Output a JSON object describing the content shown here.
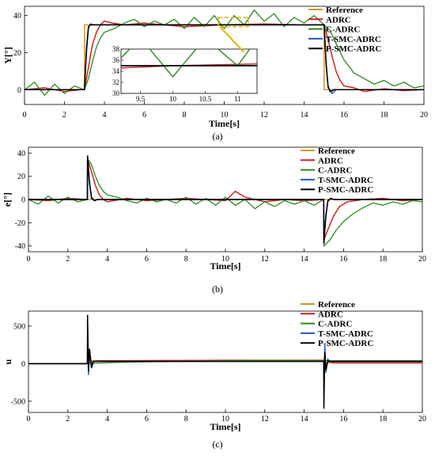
{
  "figure": {
    "series_colors": {
      "Reference": "#d4952a",
      "ADRC": "#cc2222",
      "C-ADRC": "#2a8a1e",
      "T-SMC-ADRC": "#2255cc",
      "P-SMC-ADRC": "#000000"
    }
  },
  "chart_data": [
    {
      "panel": "a",
      "caption": "(a)",
      "type": "line",
      "xlabel": "Time[s]",
      "ylabel": "Y[°]",
      "xlim": [
        0,
        20
      ],
      "ylim": [
        -8,
        45
      ],
      "xticks": [
        0,
        2,
        4,
        6,
        8,
        10,
        12,
        14,
        16,
        18,
        20
      ],
      "yticks": [
        0,
        20,
        40
      ],
      "grid": false,
      "legend": "top-right",
      "series": [
        {
          "name": "Reference",
          "x": [
            0,
            3,
            3,
            15,
            15,
            20
          ],
          "y": [
            0,
            0,
            35,
            35,
            0,
            0
          ]
        },
        {
          "name": "ADRC",
          "x": [
            0,
            1,
            2,
            2.8,
            3.0,
            3.2,
            3.4,
            3.6,
            3.8,
            4.0,
            4.4,
            5.0,
            6.0,
            8.0,
            10.0,
            12.0,
            14.0,
            14.8,
            15.0,
            15.2,
            15.4,
            15.6,
            15.8,
            16.0,
            16.5,
            17.0,
            18.0,
            19.0,
            20.0
          ],
          "y": [
            0,
            1,
            -1,
            0,
            0,
            12,
            24,
            31,
            35,
            37,
            36,
            35,
            36,
            34,
            35,
            35.5,
            35,
            35,
            35,
            27,
            18,
            10,
            5,
            2,
            1,
            -1,
            0.5,
            -0.5,
            0
          ]
        },
        {
          "name": "C-ADRC",
          "x": [
            0,
            0.5,
            1.0,
            1.5,
            2.0,
            2.5,
            3.0,
            3.2,
            3.4,
            3.6,
            3.8,
            4.0,
            4.5,
            5.0,
            5.5,
            6.0,
            6.5,
            7.0,
            7.5,
            8.0,
            8.5,
            9.0,
            9.5,
            10.0,
            10.5,
            11.0,
            11.5,
            12.0,
            12.5,
            13.0,
            13.5,
            14.0,
            14.5,
            15.0,
            15.3,
            15.6,
            16.0,
            16.5,
            17.0,
            17.5,
            18.0,
            18.5,
            19.0,
            19.5,
            20.0
          ],
          "y": [
            0,
            4,
            -3,
            3,
            -2,
            2,
            0,
            6,
            15,
            23,
            28,
            31,
            33,
            36,
            38,
            34,
            37,
            35,
            38,
            33,
            39,
            34,
            40,
            33,
            40,
            35,
            43,
            37,
            41,
            34,
            39,
            36,
            40,
            35,
            32,
            25,
            16,
            9,
            6,
            3,
            5,
            2,
            4,
            1,
            2
          ]
        },
        {
          "name": "T-SMC-ADRC",
          "x": [
            0,
            3.0,
            3.1,
            3.2,
            3.3,
            3.5,
            15.0,
            15.1,
            15.2,
            15.4,
            15.6,
            20
          ],
          "y": [
            0,
            0,
            20,
            33,
            35.5,
            35,
            35,
            15,
            1,
            -2,
            0,
            0
          ]
        },
        {
          "name": "P-SMC-ADRC",
          "x": [
            0,
            3.0,
            3.1,
            3.2,
            3.3,
            3.5,
            15.0,
            15.1,
            15.2,
            15.3,
            15.5,
            20
          ],
          "y": [
            0,
            0,
            22,
            34,
            35,
            35,
            35,
            14,
            2,
            -1,
            0,
            0
          ]
        }
      ],
      "inset": {
        "xlim": [
          9.2,
          11.3
        ],
        "ylim": [
          30,
          38
        ],
        "xticks": [
          9.5,
          10,
          10.5,
          11
        ],
        "yticks": [
          30,
          32,
          34,
          36,
          38
        ],
        "zoom_box": {
          "x": [
            9.7,
            11.2
          ],
          "y": [
            34,
            39
          ]
        }
      }
    },
    {
      "panel": "b",
      "caption": "(b)",
      "type": "line",
      "xlabel": "Time[s]",
      "ylabel": "e[°]",
      "xlim": [
        0,
        20
      ],
      "ylim": [
        -45,
        45
      ],
      "xticks": [
        0,
        2,
        4,
        6,
        8,
        10,
        12,
        14,
        16,
        18,
        20
      ],
      "yticks": [
        -40,
        -20,
        0,
        20,
        40
      ],
      "grid": false,
      "legend": "top-right",
      "series": [
        {
          "name": "Reference",
          "x": [
            0,
            20
          ],
          "y": [
            0,
            0
          ]
        },
        {
          "name": "ADRC",
          "x": [
            0,
            1,
            2,
            2.99,
            3.0,
            3.2,
            3.4,
            3.6,
            3.8,
            4.0,
            5,
            6,
            8,
            10,
            10.5,
            11,
            12,
            13,
            14,
            14.99,
            15.0,
            15.2,
            15.5,
            15.8,
            16.2,
            17,
            18,
            19,
            20
          ],
          "y": [
            0,
            -1,
            1,
            0,
            35,
            24,
            12,
            4,
            0,
            -2,
            1,
            -1,
            1,
            -1,
            7,
            2,
            -2,
            0,
            -1,
            0,
            -35,
            -26,
            -14,
            -6,
            -2,
            0,
            1,
            -1,
            0
          ]
        },
        {
          "name": "C-ADRC",
          "x": [
            0,
            0.5,
            1.0,
            1.5,
            2.0,
            2.5,
            2.99,
            3.0,
            3.2,
            3.4,
            3.6,
            3.8,
            4.0,
            4.5,
            5.0,
            5.5,
            6.0,
            6.5,
            7.0,
            7.5,
            8.0,
            8.5,
            9.0,
            9.5,
            10.0,
            10.5,
            11.0,
            11.5,
            12.0,
            12.5,
            13.0,
            13.5,
            14.0,
            14.5,
            14.99,
            15.0,
            15.3,
            15.6,
            16.0,
            16.5,
            17.0,
            17.5,
            18.0,
            18.5,
            19.0,
            19.5,
            20.0
          ],
          "y": [
            0,
            -4,
            3,
            -3,
            2,
            -2,
            0,
            35,
            30,
            20,
            12,
            7,
            4,
            2,
            -1,
            -3,
            1,
            -2,
            0,
            -3,
            2,
            -4,
            1,
            -5,
            2,
            -5,
            0,
            -8,
            -2,
            -6,
            -1,
            -4,
            -1,
            -5,
            0,
            -40,
            -35,
            -27,
            -19,
            -12,
            -7,
            -3,
            -5,
            -2,
            -4,
            -1,
            -2
          ]
        },
        {
          "name": "T-SMC-ADRC",
          "x": [
            0,
            2.99,
            3.0,
            3.1,
            3.2,
            3.35,
            3.5,
            14.99,
            15.0,
            15.1,
            15.2,
            15.35,
            15.5,
            20
          ],
          "y": [
            0,
            0,
            35,
            15,
            2,
            -1,
            0,
            0,
            -35,
            -15,
            -2,
            1,
            0,
            0
          ]
        },
        {
          "name": "P-SMC-ADRC",
          "x": [
            0,
            2.99,
            3.0,
            3.1,
            3.2,
            3.35,
            3.5,
            14.99,
            15.0,
            15.1,
            15.2,
            15.35,
            15.5,
            20
          ],
          "y": [
            0,
            0,
            38,
            14,
            1,
            -1,
            0,
            0,
            -38,
            -14,
            -1,
            1,
            0,
            0
          ]
        }
      ]
    },
    {
      "panel": "c",
      "caption": "(c)",
      "type": "line",
      "xlabel": "Time[s]",
      "ylabel": "u",
      "xlim": [
        0,
        20
      ],
      "ylim": [
        -650,
        700
      ],
      "xticks": [
        0,
        2,
        4,
        6,
        8,
        10,
        12,
        14,
        16,
        18,
        20
      ],
      "yticks": [
        -500,
        0,
        500
      ],
      "grid": false,
      "legend": "top-right",
      "series": [
        {
          "name": "Reference",
          "x": [
            0,
            3,
            3.05,
            5,
            10,
            15,
            15.05,
            20
          ],
          "y": [
            0,
            0,
            40,
            40,
            45,
            45,
            10,
            10
          ]
        },
        {
          "name": "ADRC",
          "x": [
            0,
            2.99,
            3.0,
            3.2,
            3.5,
            5,
            10,
            14.99,
            15.0,
            15.2,
            15.5,
            20
          ],
          "y": [
            0,
            0,
            80,
            20,
            40,
            40,
            45,
            45,
            -60,
            30,
            10,
            10
          ]
        },
        {
          "name": "C-ADRC",
          "x": [
            0,
            2.5,
            5,
            7.5,
            10,
            12.5,
            15,
            17.5,
            20
          ],
          "y": [
            0,
            0,
            20,
            30,
            40,
            45,
            40,
            40,
            40
          ]
        },
        {
          "name": "T-SMC-ADRC",
          "x": [
            0,
            2.99,
            3.0,
            3.05,
            3.1,
            3.2,
            3.3,
            14.99,
            15.0,
            15.05,
            15.1,
            15.2,
            15.3,
            20
          ],
          "y": [
            0,
            0,
            300,
            -150,
            150,
            -60,
            30,
            30,
            -200,
            250,
            -120,
            60,
            30,
            30
          ]
        },
        {
          "name": "P-SMC-ADRC",
          "x": [
            0,
            2.99,
            3.0,
            3.05,
            3.1,
            3.2,
            3.3,
            14.99,
            15.0,
            15.05,
            15.1,
            15.2,
            15.3,
            20
          ],
          "y": [
            0,
            0,
            650,
            -100,
            200,
            -50,
            30,
            30,
            -600,
            150,
            -80,
            40,
            30,
            30
          ]
        }
      ]
    }
  ]
}
